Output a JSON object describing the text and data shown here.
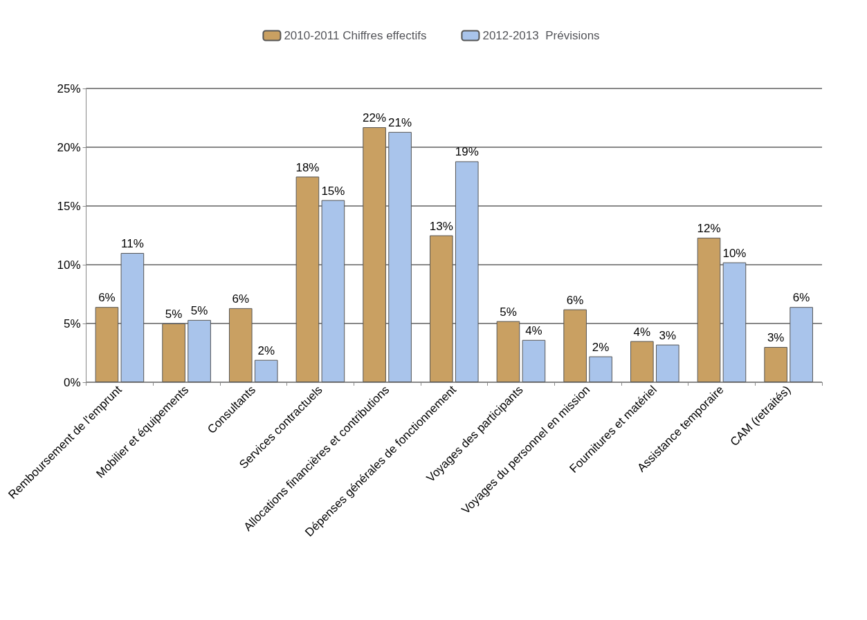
{
  "chart_data": {
    "type": "bar",
    "categories": [
      "Remboursement de l'emprunt",
      "Mobilier et équipements",
      "Consultants",
      "Services contractuels",
      "Allocations financières et contributions",
      "Dépenses générales de fonctionnement",
      "Voyages des participants",
      "Voyages du personnel en mission",
      "Fournitures et matériel",
      "Assistance temporaire",
      "CAM (retraités)"
    ],
    "series": [
      {
        "name": "2010-2011 Chiffres effectifs",
        "color": "#c9a062",
        "values": [
          6.4,
          5.0,
          6.3,
          17.5,
          21.7,
          12.5,
          5.2,
          6.2,
          3.5,
          12.3,
          3.0
        ],
        "value_labels": [
          "6%",
          "5%",
          "6%",
          "18%",
          "22%",
          "13%",
          "5%",
          "6%",
          "4%",
          "12%",
          "3%"
        ]
      },
      {
        "name": "2012-2013  Prévisions",
        "color": "#a9c4eb",
        "values": [
          11.0,
          5.3,
          1.9,
          15.5,
          21.3,
          18.8,
          3.6,
          2.2,
          3.2,
          10.2,
          6.4
        ],
        "value_labels": [
          "11%",
          "5%",
          "2%",
          "15%",
          "21%",
          "19%",
          "4%",
          "2%",
          "3%",
          "10%",
          "6%"
        ]
      }
    ],
    "ylim": [
      0,
      25
    ],
    "yticks": [
      {
        "value": 0,
        "label": "0%"
      },
      {
        "value": 5,
        "label": "5%"
      },
      {
        "value": 10,
        "label": "10%"
      },
      {
        "value": 15,
        "label": "15%"
      },
      {
        "value": 20,
        "label": "20%"
      },
      {
        "value": 25,
        "label": "25%"
      }
    ],
    "grid": "y",
    "legend": "top"
  }
}
